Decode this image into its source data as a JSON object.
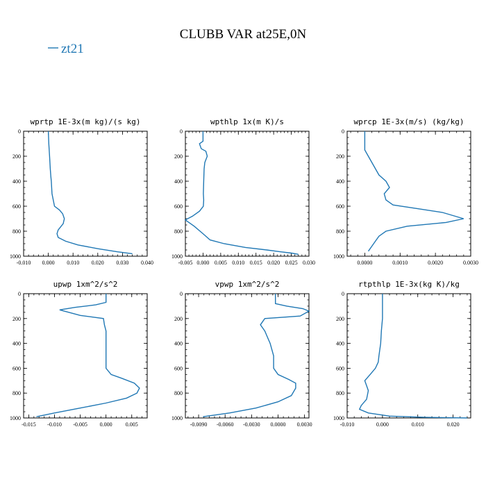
{
  "figure": {
    "title": "CLUBB VAR at25E,0N",
    "legend_label": "zt21",
    "line_color": "#1f77b4"
  },
  "chart_data": [
    {
      "type": "line",
      "title": "wprtp  1E-3x(m kg)/(s kg)",
      "xlim": [
        -0.01,
        0.04
      ],
      "ylim": [
        1000,
        0
      ],
      "x_ticks": [
        -0.01,
        0.0,
        0.01,
        0.02,
        0.03,
        0.04
      ],
      "x_tick_labels": [
        "-0.010",
        "0.000",
        "0.010",
        "0.020",
        "0.030",
        "0.040"
      ],
      "y_ticks": [
        0,
        200,
        400,
        600,
        800,
        1000
      ],
      "y_tick_labels": [
        "0",
        "200",
        "400",
        "600",
        "800",
        "1000"
      ],
      "series": [
        {
          "x": [
            0.0,
            0.0002,
            0.0005,
            0.0008,
            0.001,
            0.0012,
            0.0015,
            0.0025,
            0.0045,
            0.0058,
            0.0065,
            0.006,
            0.004,
            0.0035,
            0.004,
            0.007,
            0.012,
            0.02,
            0.028,
            0.034
          ],
          "y": [
            0,
            100,
            200,
            300,
            360,
            400,
            500,
            600,
            630,
            660,
            700,
            740,
            790,
            820,
            850,
            880,
            910,
            940,
            965,
            980
          ]
        }
      ]
    },
    {
      "type": "line",
      "title": "wpthlp  1x(m K)/s",
      "xlim": [
        -0.005,
        0.03
      ],
      "ylim": [
        1000,
        0
      ],
      "x_ticks": [
        -0.005,
        0.0,
        0.005,
        0.01,
        0.015,
        0.02,
        0.025,
        0.03
      ],
      "x_tick_labels": [
        "-0.005",
        "0.000",
        "0.005",
        "0.010",
        "0.015",
        "0.020",
        "0.025",
        "0.030"
      ],
      "y_ticks": [
        0,
        200,
        400,
        600,
        800,
        1000
      ],
      "y_tick_labels": [
        "0",
        "200",
        "400",
        "600",
        "800",
        "1000"
      ],
      "series": [
        {
          "x": [
            0.0,
            0.0,
            -0.001,
            -0.0005,
            0.0008,
            0.0012,
            0.0005,
            0.0003,
            0.0002,
            0.0001,
            0.0002,
            0.0001,
            -0.001,
            -0.003,
            -0.005,
            -0.0025,
            0.0,
            0.002,
            0.006,
            0.012,
            0.018,
            0.022,
            0.025,
            0.027
          ],
          "y": [
            0,
            80,
            100,
            140,
            160,
            200,
            250,
            300,
            400,
            500,
            550,
            600,
            640,
            680,
            710,
            760,
            820,
            870,
            900,
            930,
            950,
            965,
            975,
            985
          ]
        }
      ]
    },
    {
      "type": "line",
      "title": "wprcp  1E-3x(m/s) (kg/kg)",
      "xlim": [
        -0.0005,
        0.003
      ],
      "ylim": [
        1000,
        0
      ],
      "x_ticks": [
        0.0,
        0.001,
        0.002,
        0.003
      ],
      "x_tick_labels": [
        "0.0000",
        "0.0010",
        "0.0020",
        "0.0030"
      ],
      "y_ticks": [
        0,
        200,
        400,
        600,
        800,
        1000
      ],
      "y_tick_labels": [
        "0",
        "200",
        "400",
        "600",
        "800",
        "1000"
      ],
      "series": [
        {
          "x": [
            0.0,
            0.0,
            0.0,
            0.0001,
            0.0002,
            0.0003,
            0.0004,
            0.0006,
            0.0007,
            0.00055,
            0.0006,
            0.0008,
            0.0015,
            0.0022,
            0.0028,
            0.0023,
            0.0012,
            0.0006,
            0.0004,
            0.0003,
            0.0002,
            0.0001
          ],
          "y": [
            0,
            100,
            150,
            200,
            250,
            300,
            350,
            400,
            450,
            500,
            550,
            590,
            620,
            650,
            700,
            730,
            760,
            800,
            840,
            880,
            920,
            960
          ]
        }
      ]
    },
    {
      "type": "line",
      "title": "upwp  1xm^2/s^2",
      "xlim": [
        -0.016,
        0.008
      ],
      "ylim": [
        1000,
        0
      ],
      "x_ticks": [
        -0.015,
        -0.01,
        -0.005,
        0.0,
        0.005
      ],
      "x_tick_labels": [
        "-0.015",
        "-0.010",
        "-0.005",
        "0.000",
        "0.005"
      ],
      "y_ticks": [
        0,
        200,
        400,
        600,
        800,
        1000
      ],
      "y_tick_labels": [
        "0",
        "200",
        "400",
        "600",
        "800",
        "1000"
      ],
      "series": [
        {
          "x": [
            0.0,
            0.0,
            -0.002,
            -0.006,
            -0.009,
            -0.005,
            -0.0005,
            -0.0003,
            0.0,
            0.0,
            0.0,
            0.0,
            0.001,
            0.003,
            0.0055,
            0.0065,
            0.006,
            0.004,
            0.0,
            -0.005,
            -0.01,
            -0.0135
          ],
          "y": [
            0,
            70,
            90,
            110,
            130,
            175,
            200,
            250,
            300,
            400,
            500,
            600,
            650,
            680,
            720,
            760,
            800,
            840,
            880,
            920,
            960,
            990
          ]
        }
      ]
    },
    {
      "type": "line",
      "title": "vpwp  1xm^2/s^2",
      "xlim": [
        -0.0105,
        0.0035
      ],
      "ylim": [
        1000,
        0
      ],
      "x_ticks": [
        -0.009,
        -0.006,
        -0.003,
        0.0,
        0.003
      ],
      "x_tick_labels": [
        "-0.0090",
        "-0.0060",
        "-0.0030",
        "0.0000",
        "0.0030"
      ],
      "y_ticks": [
        0,
        200,
        400,
        600,
        800,
        1000
      ],
      "y_tick_labels": [
        "0",
        "200",
        "400",
        "600",
        "800",
        "1000"
      ],
      "series": [
        {
          "x": [
            -0.0003,
            -0.0003,
            0.001,
            0.0028,
            0.0035,
            0.0025,
            -0.0015,
            -0.002,
            -0.0015,
            -0.0012,
            -0.0009,
            -0.0007,
            -0.0005,
            -0.0005,
            -0.0005,
            0.0,
            0.0012,
            0.002,
            0.002,
            0.0015,
            0.0,
            -0.0025,
            -0.0055,
            -0.0085
          ],
          "y": [
            0,
            80,
            100,
            120,
            140,
            180,
            200,
            250,
            300,
            350,
            400,
            450,
            500,
            550,
            600,
            650,
            690,
            720,
            760,
            820,
            870,
            920,
            960,
            990
          ]
        }
      ]
    },
    {
      "type": "line",
      "title": "rtpthlp  1E-3x(kg K)/kg",
      "xlim": [
        -0.01,
        0.025
      ],
      "ylim": [
        1000,
        0
      ],
      "x_ticks": [
        -0.01,
        0.0,
        0.01,
        0.02
      ],
      "x_tick_labels": [
        "-0.010",
        "0.000",
        "0.010",
        "0.020"
      ],
      "y_ticks": [
        0,
        200,
        400,
        600,
        800,
        1000
      ],
      "y_tick_labels": [
        "0",
        "200",
        "400",
        "600",
        "800",
        "1000"
      ],
      "series": [
        {
          "x": [
            0.0,
            0.0,
            0.0,
            -0.0003,
            -0.0005,
            -0.001,
            -0.0012,
            -0.002,
            -0.0035,
            -0.005,
            -0.0045,
            -0.004,
            -0.0045,
            -0.006,
            -0.0065,
            -0.004,
            0.002,
            0.012,
            0.024
          ],
          "y": [
            0,
            100,
            200,
            300,
            400,
            500,
            550,
            600,
            650,
            700,
            740,
            780,
            850,
            900,
            930,
            960,
            985,
            995,
            1000
          ]
        }
      ]
    }
  ]
}
